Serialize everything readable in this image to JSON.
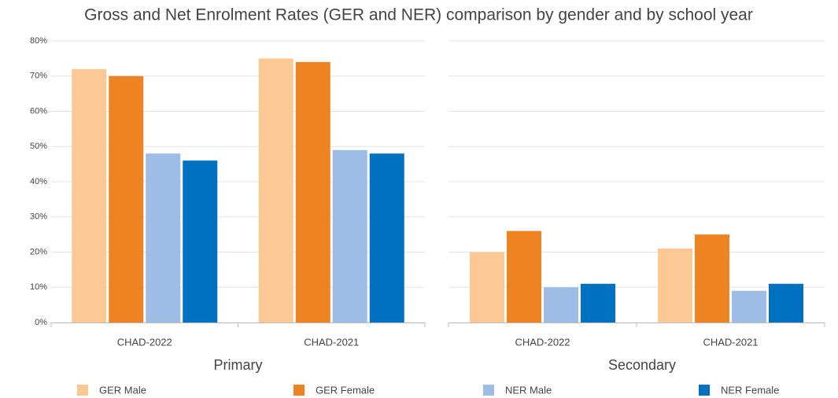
{
  "chart_data": [
    {
      "type": "bar",
      "title": "Gross and Net Enrolment Rates (GER and NER) comparison by gender and by school year",
      "xlabel": "Primary",
      "categories": [
        "CHAD-2022",
        "CHAD-2021"
      ],
      "series": [
        {
          "name": "GER Male",
          "color": "#fcc893",
          "values": [
            72,
            75
          ]
        },
        {
          "name": "GER Female",
          "color": "#ee8421",
          "values": [
            70,
            74
          ]
        },
        {
          "name": "NER Male",
          "color": "#9dbde6",
          "values": [
            48,
            49
          ]
        },
        {
          "name": "NER Female",
          "color": "#0070c0",
          "values": [
            46,
            48
          ]
        }
      ],
      "ylim": [
        0,
        80
      ],
      "yticks": [
        {
          "value": 0,
          "label": "0%"
        },
        {
          "value": 10,
          "label": "10%"
        },
        {
          "value": 20,
          "label": "20%"
        },
        {
          "value": 30,
          "label": "30%"
        },
        {
          "value": 40,
          "label": "40%"
        },
        {
          "value": 50,
          "label": "50%"
        },
        {
          "value": 60,
          "label": "60%"
        },
        {
          "value": 70,
          "label": "70%"
        },
        {
          "value": 80,
          "label": "80%"
        }
      ],
      "grid": true,
      "legend": "bottom"
    },
    {
      "type": "bar",
      "xlabel": "Secondary",
      "categories": [
        "CHAD-2022",
        "CHAD-2021"
      ],
      "series": [
        {
          "name": "GER Male",
          "color": "#fcc893",
          "values": [
            20,
            21
          ]
        },
        {
          "name": "GER Female",
          "color": "#ee8421",
          "values": [
            26,
            25
          ]
        },
        {
          "name": "NER Male",
          "color": "#9dbde6",
          "values": [
            10,
            9
          ]
        },
        {
          "name": "NER Female",
          "color": "#0070c0",
          "values": [
            11,
            11
          ]
        }
      ],
      "ylim": [
        0,
        80
      ],
      "yticks": [
        0,
        10,
        20,
        30,
        40,
        50,
        60,
        70,
        80
      ],
      "grid": true
    }
  ]
}
